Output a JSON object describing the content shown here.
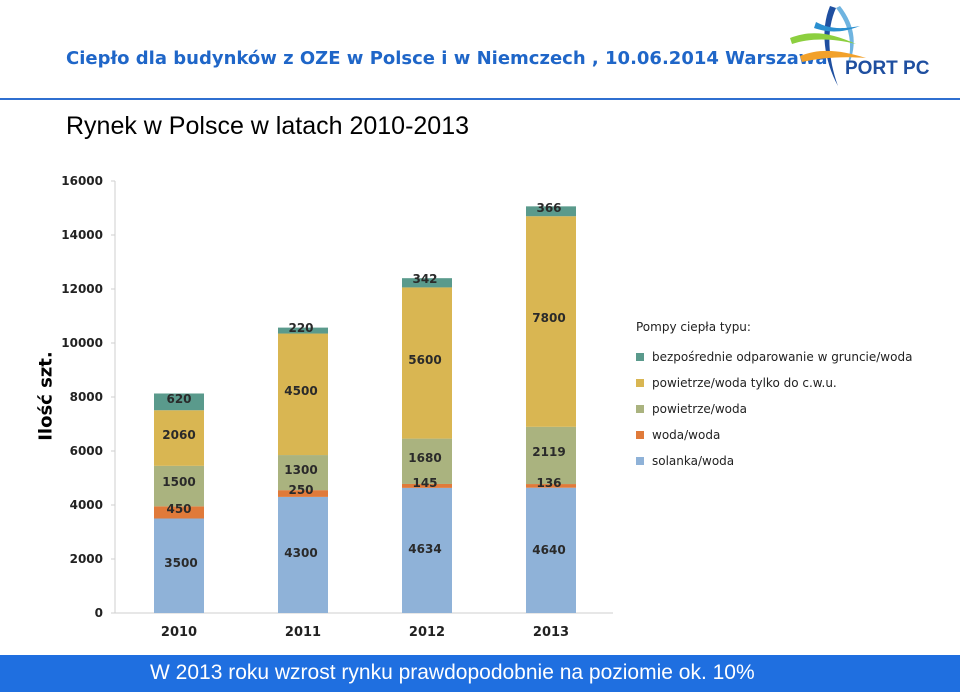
{
  "header": {
    "title": "Ciepło dla budynków z OZE w Polsce i w Niemczech , 10.06.2014 Warszawa",
    "logo_text": "PORT PC",
    "logo_icon": "port-pc-logo-icon"
  },
  "page_title": "Rynek w Polsce w latach 2010-2013",
  "footer_text": "W 2013 roku wzrost rynku prawdopodobnie na poziomie ok. 10%",
  "colors": {
    "accent": "#1f66c8",
    "footer_bg": "#1f6fe0"
  },
  "chart_data": {
    "type": "bar",
    "stacked": true,
    "title": "",
    "xlabel": "",
    "ylabel": "Ilość szt.",
    "ylim": [
      0,
      16000
    ],
    "yticks": [
      0,
      2000,
      4000,
      6000,
      8000,
      10000,
      12000,
      14000,
      16000
    ],
    "grid": false,
    "categories": [
      "2010",
      "2011",
      "2012",
      "2013"
    ],
    "legend_title": "Pompy ciepła typu:",
    "legend_position": "right",
    "series": [
      {
        "name": "solanka/woda",
        "color": "#8fb2d8",
        "values": [
          3500,
          4300,
          4634,
          4640
        ]
      },
      {
        "name": "woda/woda",
        "color": "#e07a3a",
        "values": [
          450,
          250,
          145,
          136
        ]
      },
      {
        "name": "powietrze/woda",
        "color": "#aab37f",
        "values": [
          1500,
          1300,
          1680,
          2119
        ]
      },
      {
        "name": "powietrze/woda tylko do c.w.u.",
        "color": "#d9b652",
        "values": [
          2060,
          4500,
          5600,
          7800
        ]
      },
      {
        "name": "bezpośrednie odparowanie w gruncie/woda",
        "color": "#5a9a8c",
        "values": [
          620,
          220,
          342,
          366
        ]
      }
    ]
  }
}
